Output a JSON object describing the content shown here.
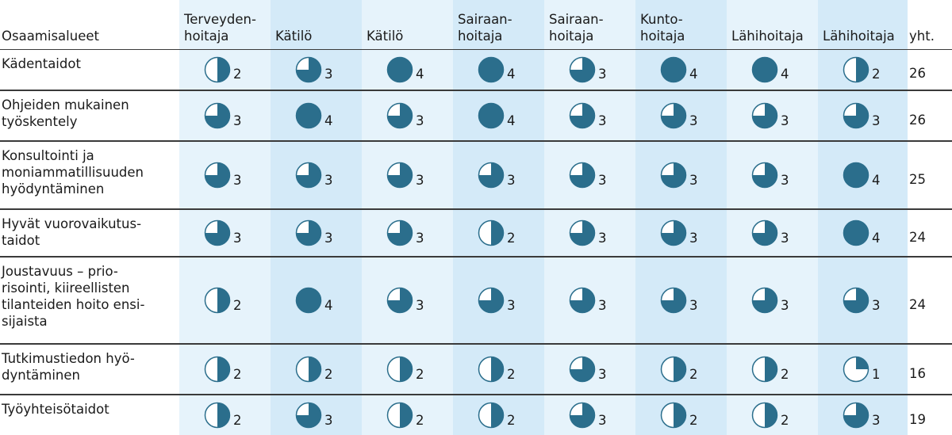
{
  "header": {
    "category": "Osaamisalueet",
    "total": "yht."
  },
  "columns": [
    "Terveyden-\nhoitaja",
    "Kätilö",
    "Kätilö",
    "Sairaan-\nhoitaja",
    "Sairaan-\nhoitaja",
    "Kunto-\nhoitaja",
    "Lähihoitaja",
    "Lähihoitaja"
  ],
  "rows": [
    {
      "label": "Kädentaidot",
      "values": [
        2,
        3,
        4,
        4,
        3,
        4,
        4,
        2
      ],
      "total": "26"
    },
    {
      "label": "Ohjeiden mukainen\ntyöskentely",
      "values": [
        3,
        4,
        3,
        4,
        3,
        3,
        3,
        3
      ],
      "total": "26"
    },
    {
      "label": "Konsultointi ja\nmoniammatillisuuden\nhyödyntäminen",
      "values": [
        3,
        3,
        3,
        3,
        3,
        3,
        3,
        4
      ],
      "total": "25"
    },
    {
      "label": "Hyvät vuorovaikutus-\ntaidot",
      "values": [
        3,
        3,
        3,
        2,
        3,
        3,
        3,
        4
      ],
      "total": "24"
    },
    {
      "label": "Joustavuus – prio-\nrisointi, kiireellisten\ntilanteiden hoito ensi-\nsijaista",
      "values": [
        2,
        4,
        3,
        3,
        3,
        3,
        3,
        3
      ],
      "total": "24"
    },
    {
      "label": "Tutkimustiedon hyö-\ndyntäminen",
      "values": [
        2,
        2,
        2,
        2,
        3,
        2,
        2,
        1
      ],
      "total": "16"
    },
    {
      "label": "Työyhteisötaidot",
      "values": [
        2,
        3,
        2,
        2,
        3,
        2,
        2,
        3
      ],
      "total": "19"
    }
  ],
  "colors": {
    "fill": "#2b6e8c",
    "empty": "#ffffff",
    "stripe_light": "#e6f3fb",
    "stripe_dark": "#d4eaf8"
  }
}
